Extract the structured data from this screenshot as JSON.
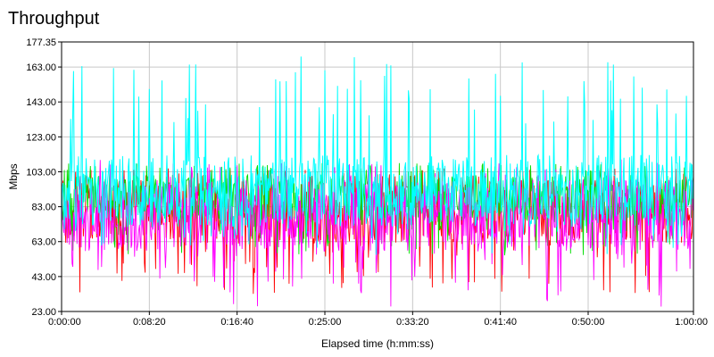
{
  "chart_data": {
    "type": "line",
    "title": "Throughput",
    "xlabel": "Elapsed time (h:mm:ss)",
    "ylabel": "Mbps",
    "xlim": [
      0,
      3600
    ],
    "ylim": [
      23.0,
      177.35
    ],
    "x_unit": "seconds",
    "x_tick_values": [
      0,
      500,
      1000,
      1500,
      2000,
      2500,
      3000,
      3600
    ],
    "x_tick_labels": [
      "0:00:00",
      "0:08:20",
      "0:16:40",
      "0:25:00",
      "0:33:20",
      "0:41:40",
      "0:50:00",
      "1:00:00"
    ],
    "y_tick_values": [
      23.0,
      43.0,
      63.0,
      83.0,
      103.0,
      123.0,
      143.0,
      163.0,
      177.35
    ],
    "y_tick_labels": [
      "23.00",
      "43.00",
      "63.00",
      "83.00",
      "103.00",
      "123.00",
      "143.00",
      "163.00",
      "177.35"
    ],
    "grid": true,
    "legend": "none",
    "series": [
      {
        "color": "#ff0000",
        "mean": 80,
        "low": 33,
        "high": 100,
        "peak": 105
      },
      {
        "color": "#00dd00",
        "mean": 88,
        "low": 55,
        "high": 103,
        "peak": 108
      },
      {
        "color": "#ff00ff",
        "mean": 78,
        "low": 25,
        "high": 100,
        "peak": 110
      },
      {
        "color": "#00ffff",
        "mean": 92,
        "low": 55,
        "high": 130,
        "peak": 170
      }
    ]
  }
}
